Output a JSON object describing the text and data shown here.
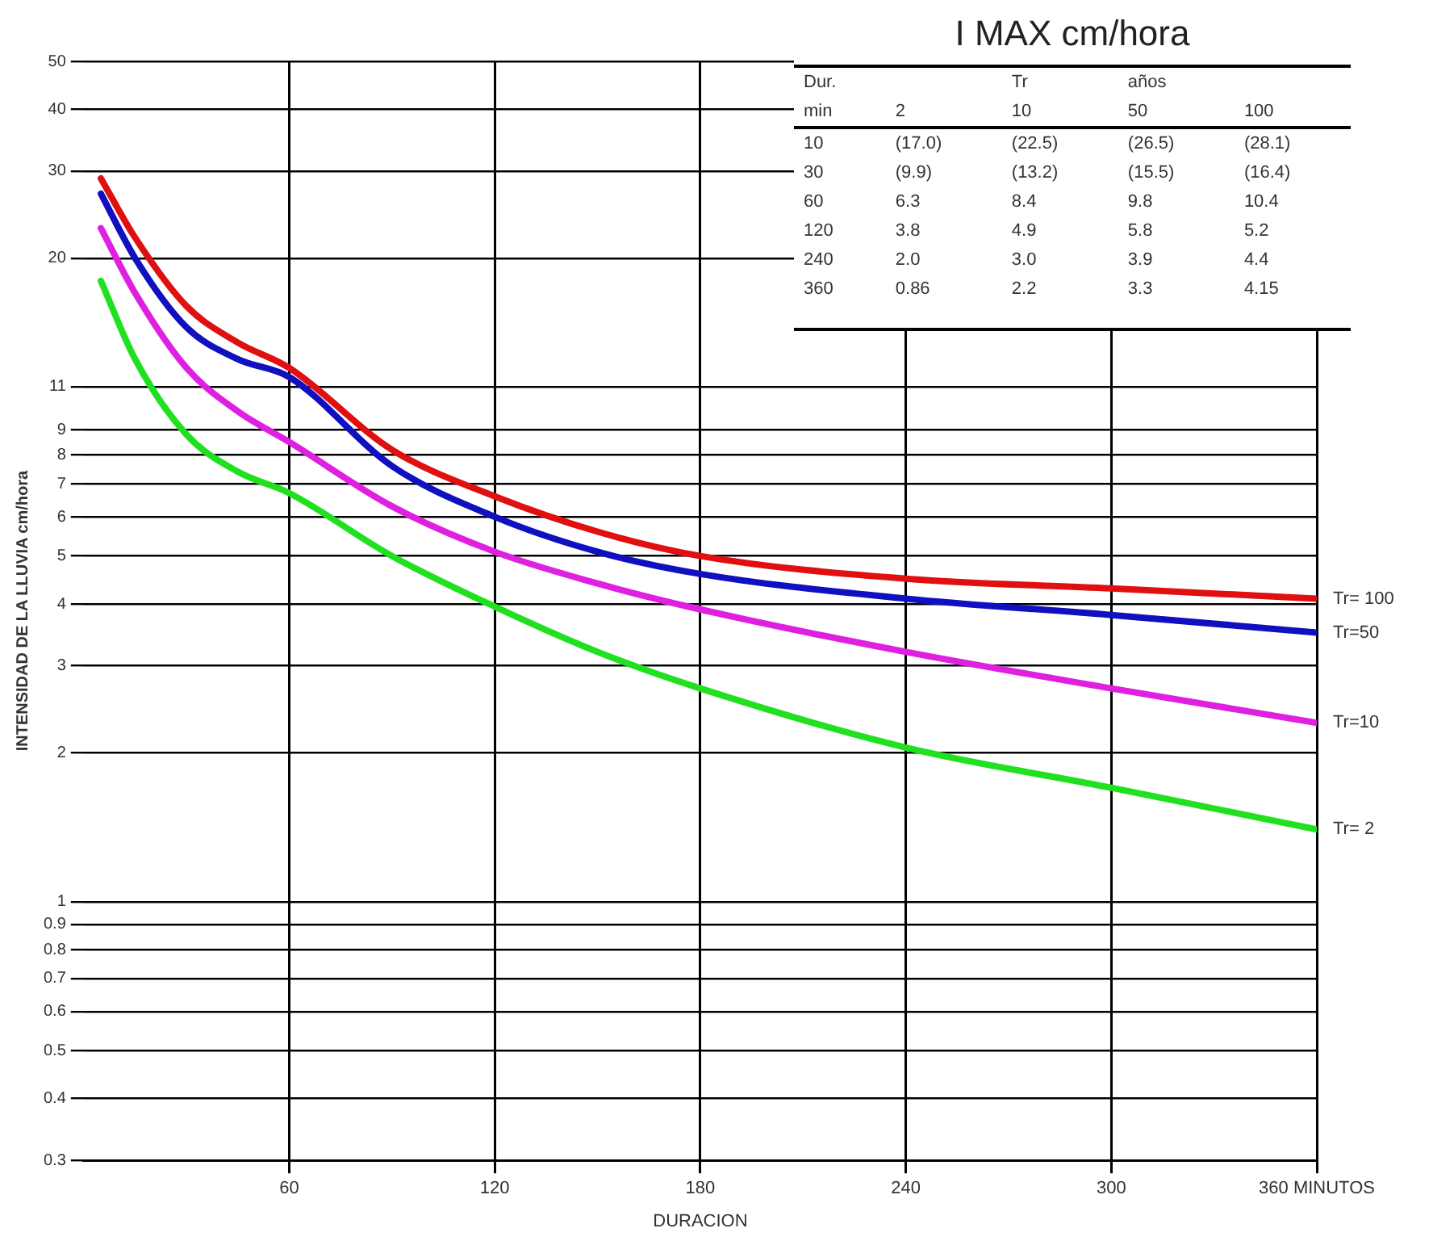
{
  "chart_data": {
    "type": "line",
    "title": "I MAX  cm/hora",
    "xlabel": "DURACION",
    "ylabel": "INTENSIDAD DE LA LLUVIA cm/hora",
    "x": [
      5,
      15,
      30,
      45,
      60,
      90,
      120,
      150,
      180,
      240,
      300,
      360
    ],
    "series": [
      {
        "name": "Tr= 100",
        "color": "#e01010",
        "values": [
          29,
          22,
          16,
          13.5,
          12,
          8.2,
          6.6,
          5.6,
          5.0,
          4.5,
          4.3,
          4.1
        ]
      },
      {
        "name": "Tr=50",
        "color": "#1010c0",
        "values": [
          27,
          20,
          14.5,
          12.5,
          11.5,
          7.6,
          6,
          5.1,
          4.6,
          4.1,
          3.8,
          3.5
        ]
      },
      {
        "name": "Tr=10",
        "color": "#e020e0",
        "values": [
          23,
          17,
          12,
          9.8,
          8.5,
          6.3,
          5.1,
          4.4,
          3.9,
          3.2,
          2.7,
          2.3
        ]
      },
      {
        "name": "Tr= 2",
        "color": "#20e020",
        "values": [
          18,
          12.5,
          8.8,
          7.4,
          6.7,
          5,
          3.95,
          3.2,
          2.7,
          2.05,
          1.7,
          1.4
        ]
      }
    ],
    "log": "y",
    "xlim": [
      0,
      360
    ],
    "xticks": [
      60,
      120,
      180,
      240,
      300,
      {
        "value": 360,
        "label": "360 MINUTOS"
      }
    ],
    "ylim": [
      0.3,
      50
    ],
    "yticks": [
      0.3,
      0.4,
      0.5,
      0.6,
      0.7,
      0.8,
      0.9,
      1,
      2,
      3,
      4,
      5,
      6,
      7,
      8,
      9,
      11,
      20,
      30,
      40,
      50
    ],
    "grid": true,
    "legend": false,
    "marker": "none",
    "line_style": "solid",
    "annotations": [
      "Dur.\t\tTr\taños\t",
      "min\t2\t10\t50\t100",
      "10\t(17.0)\t(22.5)\t(26.5)\t(28.1)",
      "30\t(9.9)\t(13.2)\t(15.5)\t(16.4)",
      "60\t6.3\t8.4\t9.8\t10.4",
      "120\t3.8\t4.9\t5.8\t5.2",
      "240\t2.0\t3.0\t3.9\t4.4",
      "360\t0.86\t2.2\t3.3\t4.15"
    ]
  }
}
